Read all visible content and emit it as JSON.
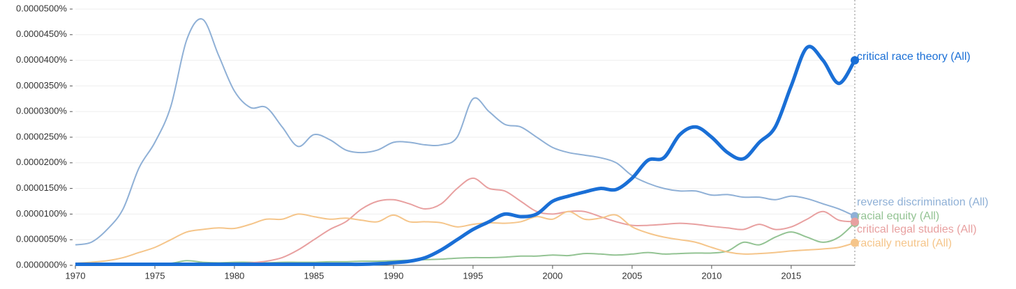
{
  "chart_data": {
    "type": "line",
    "x": [
      1970,
      1971,
      1972,
      1973,
      1974,
      1975,
      1976,
      1977,
      1978,
      1979,
      1980,
      1981,
      1982,
      1983,
      1984,
      1985,
      1986,
      1987,
      1988,
      1989,
      1990,
      1991,
      1992,
      1993,
      1994,
      1995,
      1996,
      1997,
      1998,
      1999,
      2000,
      2001,
      2002,
      2003,
      2004,
      2005,
      2006,
      2007,
      2008,
      2009,
      2010,
      2011,
      2012,
      2013,
      2014,
      2015,
      2016,
      2017,
      2018,
      2019
    ],
    "xlim": [
      1970,
      2019
    ],
    "xticks": [
      1970,
      1975,
      1980,
      1985,
      1990,
      1995,
      2000,
      2005,
      2010,
      2015
    ],
    "ylim": [
      0,
      5e-05
    ],
    "yticks": [
      {
        "value": 0,
        "label": "0.0000000%"
      },
      {
        "value": 5e-06,
        "label": "0.0000050%"
      },
      {
        "value": 1e-05,
        "label": "0.0000100%"
      },
      {
        "value": 1.5e-05,
        "label": "0.0000150%"
      },
      {
        "value": 2e-05,
        "label": "0.0000200%"
      },
      {
        "value": 2.5e-05,
        "label": "0.0000250%"
      },
      {
        "value": 3e-05,
        "label": "0.0000300%"
      },
      {
        "value": 3.5e-05,
        "label": "0.0000350%"
      },
      {
        "value": 4e-05,
        "label": "0.0000400%"
      },
      {
        "value": 4.5e-05,
        "label": "0.0000450%"
      },
      {
        "value": 5e-05,
        "label": "0.0000500%"
      }
    ],
    "grid": true,
    "series": [
      {
        "name": "critical race theory (All)",
        "color": "#1a6fd6",
        "values": [
          2e-07,
          2e-07,
          2e-07,
          2e-07,
          2e-07,
          2e-07,
          2e-07,
          2e-07,
          2e-07,
          2e-07,
          2e-07,
          2e-07,
          2e-07,
          2e-07,
          2e-07,
          2e-07,
          2e-07,
          2e-07,
          2e-07,
          3e-07,
          5e-07,
          8e-07,
          1.5e-06,
          3e-06,
          5e-06,
          7e-06,
          8.5e-06,
          1e-05,
          9.5e-06,
          1e-05,
          1.25e-05,
          1.35e-05,
          1.43e-05,
          1.5e-05,
          1.48e-05,
          1.7e-05,
          2.05e-05,
          2.1e-05,
          2.55e-05,
          2.7e-05,
          2.5e-05,
          2.2e-05,
          2.08e-05,
          2.4e-05,
          2.7e-05,
          3.5e-05,
          4.25e-05,
          4e-05,
          3.55e-05,
          4e-05
        ]
      },
      {
        "name": "reverse discrimination (All)",
        "color": "#8fb0d6",
        "values": [
          4e-06,
          4.5e-06,
          7e-06,
          1.1e-05,
          1.9e-05,
          2.4e-05,
          3.1e-05,
          4.4e-05,
          4.8e-05,
          4.1e-05,
          3.4e-05,
          3.08e-05,
          3.08e-05,
          2.7e-05,
          2.32e-05,
          2.55e-05,
          2.45e-05,
          2.25e-05,
          2.2e-05,
          2.25e-05,
          2.4e-05,
          2.4e-05,
          2.35e-05,
          2.35e-05,
          2.5e-05,
          3.25e-05,
          3e-05,
          2.75e-05,
          2.7e-05,
          2.5e-05,
          2.3e-05,
          2.2e-05,
          2.15e-05,
          2.1e-05,
          2e-05,
          1.75e-05,
          1.6e-05,
          1.5e-05,
          1.45e-05,
          1.45e-05,
          1.37e-05,
          1.38e-05,
          1.33e-05,
          1.33e-05,
          1.28e-05,
          1.35e-05,
          1.3e-05,
          1.2e-05,
          1.1e-05,
          9.6e-06
        ]
      },
      {
        "name": "racial equity (All)",
        "color": "#93c393",
        "values": [
          3e-07,
          3e-07,
          3e-07,
          3e-07,
          3e-07,
          3e-07,
          4e-07,
          9e-07,
          6e-07,
          5e-07,
          6e-07,
          6e-07,
          5e-07,
          6e-07,
          6e-07,
          6e-07,
          7e-07,
          7e-07,
          8e-07,
          8e-07,
          9e-07,
          1e-06,
          1.1e-06,
          1.2e-06,
          1.4e-06,
          1.5e-06,
          1.5e-06,
          1.6e-06,
          1.8e-06,
          1.8e-06,
          2e-06,
          1.9e-06,
          2.3e-06,
          2.2e-06,
          2e-06,
          2.2e-06,
          2.5e-06,
          2.2e-06,
          2.3e-06,
          2.4e-06,
          2.4e-06,
          2.8e-06,
          4.5e-06,
          4e-06,
          5.5e-06,
          6.5e-06,
          5.5e-06,
          4.5e-06,
          5.5e-06,
          8.3e-06
        ]
      },
      {
        "name": "critical legal studies (All)",
        "color": "#e8a0a0",
        "values": [
          2e-07,
          2e-07,
          2e-07,
          2e-07,
          2e-07,
          2e-07,
          2e-07,
          2e-07,
          2e-07,
          2e-07,
          3e-07,
          5e-07,
          8e-07,
          1.5e-06,
          3e-06,
          5e-06,
          7e-06,
          8.5e-06,
          1.1e-05,
          1.25e-05,
          1.28e-05,
          1.2e-05,
          1.1e-05,
          1.2e-05,
          1.5e-05,
          1.7e-05,
          1.5e-05,
          1.45e-05,
          1.25e-05,
          1.05e-05,
          1e-05,
          1.05e-05,
          1.05e-05,
          9.5e-06,
          8.5e-06,
          7.8e-06,
          7.8e-06,
          8e-06,
          8.2e-06,
          8e-06,
          7.6e-06,
          7.3e-06,
          7e-06,
          8e-06,
          7e-06,
          7.5e-06,
          9e-06,
          1.05e-05,
          8.8e-06,
          8.5e-06
        ]
      },
      {
        "name": "racially neutral (All)",
        "color": "#f5c58a",
        "values": [
          4e-07,
          6e-07,
          9e-07,
          1.5e-06,
          2.5e-06,
          3.5e-06,
          5e-06,
          6.5e-06,
          7e-06,
          7.3e-06,
          7.2e-06,
          8e-06,
          9e-06,
          9e-06,
          1e-05,
          9.5e-06,
          9e-06,
          9.2e-06,
          8.8e-06,
          8.5e-06,
          9.8e-06,
          8.5e-06,
          8.5e-06,
          8.3e-06,
          7.5e-06,
          8e-06,
          8.3e-06,
          8.2e-06,
          8.5e-06,
          9.5e-06,
          9e-06,
          1.05e-05,
          9e-06,
          9.2e-06,
          9.8e-06,
          7.5e-06,
          6.3e-06,
          5.5e-06,
          5e-06,
          4.5e-06,
          3.5e-06,
          2.6e-06,
          2.2e-06,
          2.3e-06,
          2.5e-06,
          2.8e-06,
          3e-06,
          3.2e-06,
          3.5e-06,
          4.4e-06
        ]
      }
    ]
  }
}
